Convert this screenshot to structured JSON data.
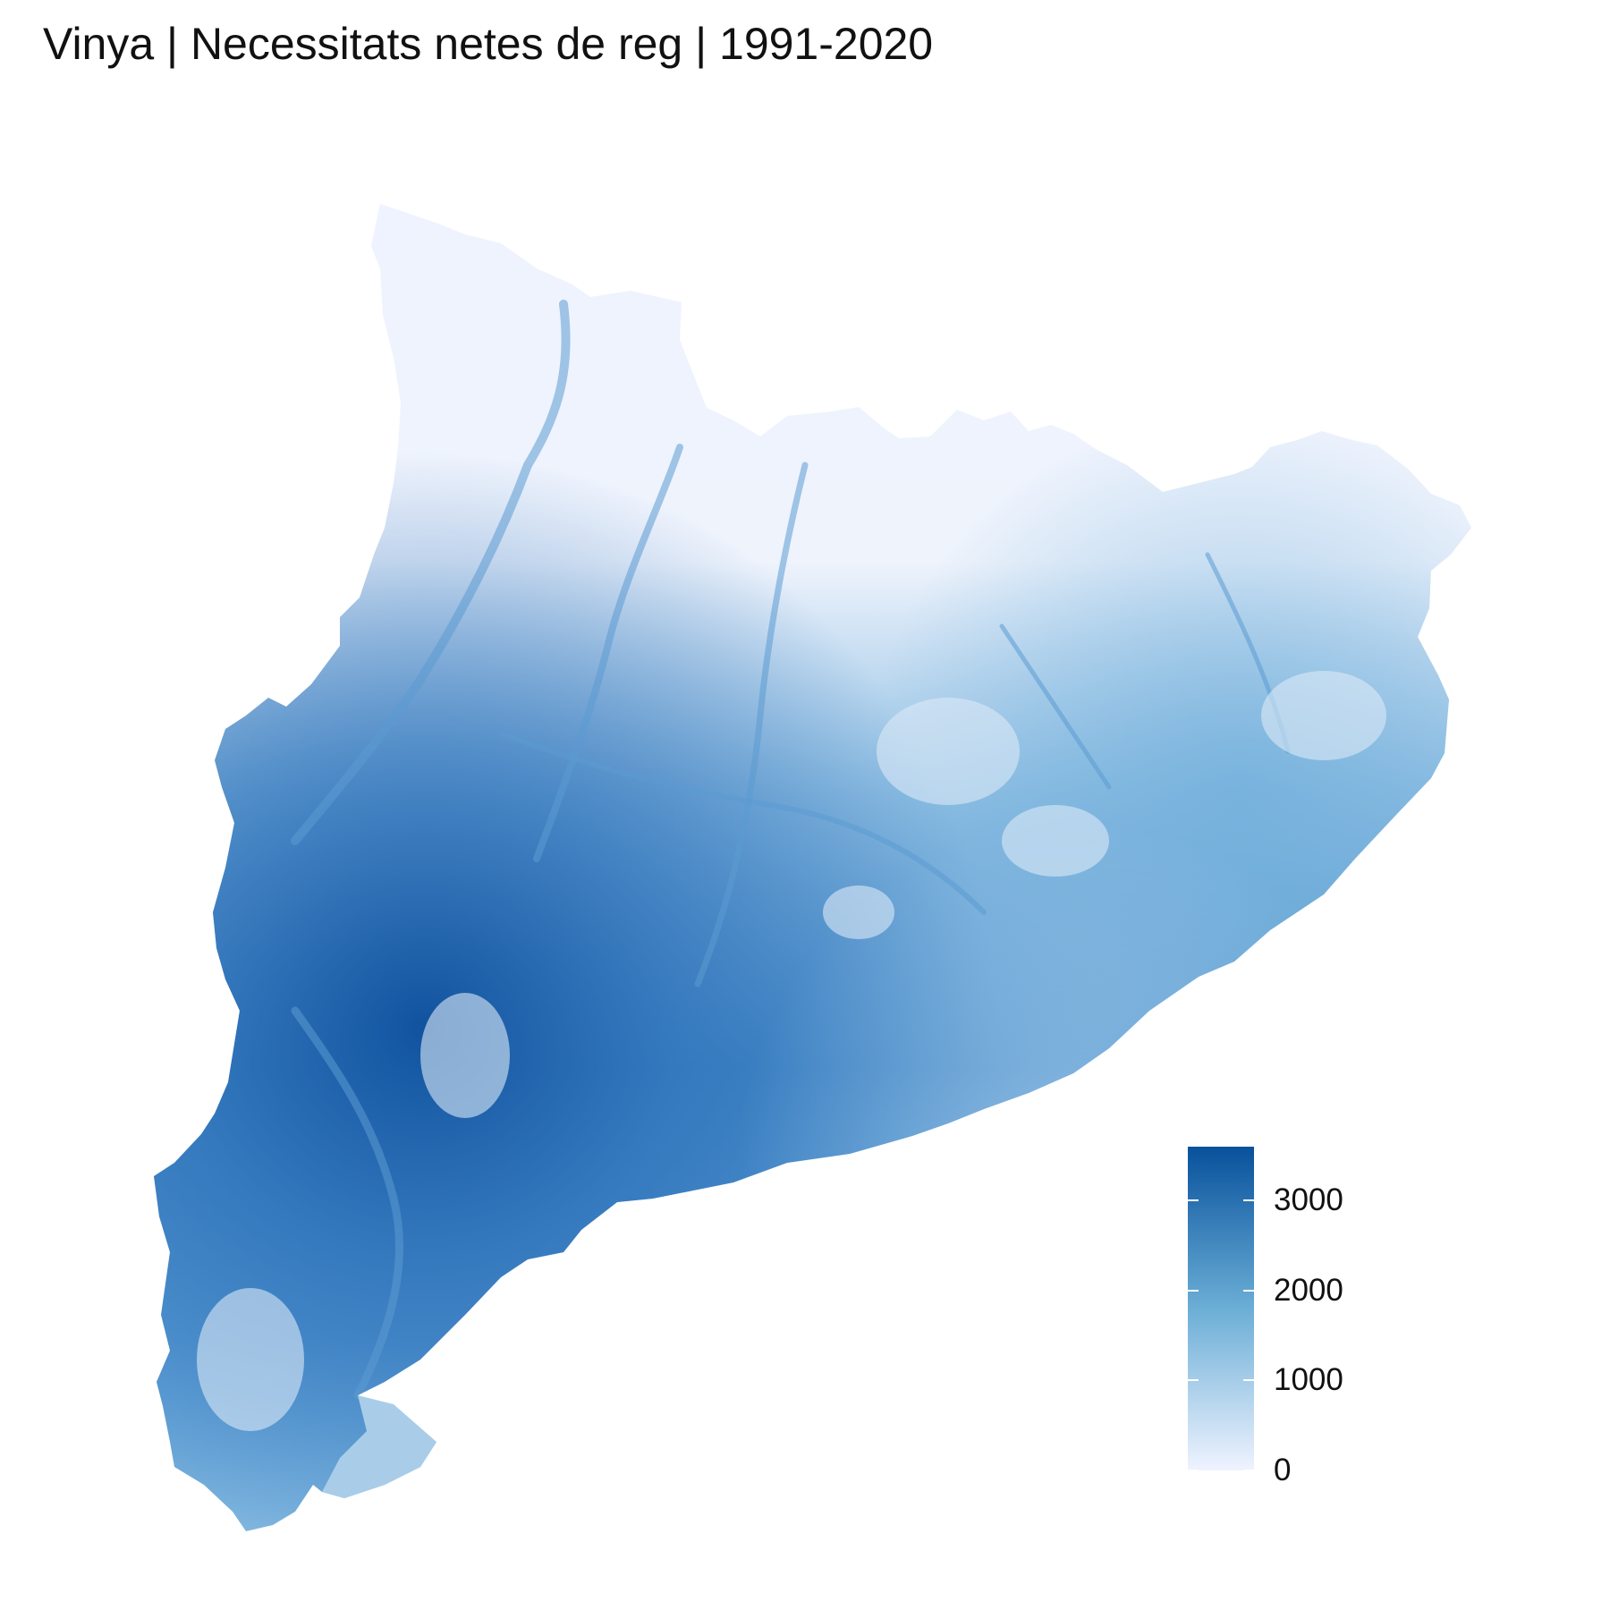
{
  "title": "Vinya | Necessitats netes de reg | 1991-2020",
  "legend": {
    "min": 0,
    "max": 3600,
    "ticks": [
      {
        "value": 0,
        "label": "0"
      },
      {
        "value": 1000,
        "label": "1000"
      },
      {
        "value": 2000,
        "label": "2000"
      },
      {
        "value": 3000,
        "label": "3000"
      }
    ],
    "colors": {
      "low": "#eff3ff",
      "mid": "#6baed6",
      "high": "#08519c"
    }
  }
}
